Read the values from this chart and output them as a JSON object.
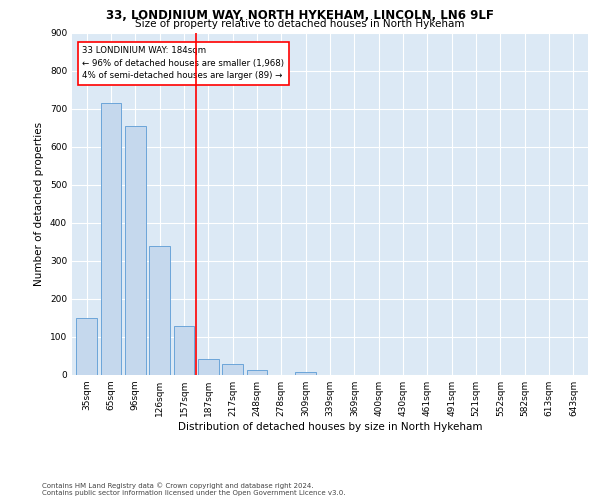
{
  "title1": "33, LONDINIUM WAY, NORTH HYKEHAM, LINCOLN, LN6 9LF",
  "title2": "Size of property relative to detached houses in North Hykeham",
  "xlabel": "Distribution of detached houses by size in North Hykeham",
  "ylabel": "Number of detached properties",
  "footer1": "Contains HM Land Registry data © Crown copyright and database right 2024.",
  "footer2": "Contains public sector information licensed under the Open Government Licence v3.0.",
  "bar_labels": [
    "35sqm",
    "65sqm",
    "96sqm",
    "126sqm",
    "157sqm",
    "187sqm",
    "217sqm",
    "248sqm",
    "278sqm",
    "309sqm",
    "339sqm",
    "369sqm",
    "400sqm",
    "430sqm",
    "461sqm",
    "491sqm",
    "521sqm",
    "552sqm",
    "582sqm",
    "613sqm",
    "643sqm"
  ],
  "bar_values": [
    150,
    715,
    655,
    340,
    130,
    42,
    30,
    12,
    0,
    8,
    0,
    0,
    0,
    0,
    0,
    0,
    0,
    0,
    0,
    0,
    0
  ],
  "bar_color": "#c5d8ed",
  "bar_edge_color": "#5b9bd5",
  "vline_color": "red",
  "vline_x": 4.5,
  "annotation_text": "33 LONDINIUM WAY: 184sqm\n← 96% of detached houses are smaller (1,968)\n4% of semi-detached houses are larger (89) →",
  "annotation_box_color": "white",
  "annotation_box_edge": "red",
  "ylim": [
    0,
    900
  ],
  "yticks": [
    0,
    100,
    200,
    300,
    400,
    500,
    600,
    700,
    800,
    900
  ],
  "bg_color": "#dce9f5",
  "title_fontsize": 8.5,
  "subtitle_fontsize": 7.5,
  "ylabel_fontsize": 7.5,
  "xlabel_fontsize": 7.5,
  "tick_fontsize": 6.5,
  "ann_fontsize": 6.2,
  "footer_fontsize": 5.0
}
